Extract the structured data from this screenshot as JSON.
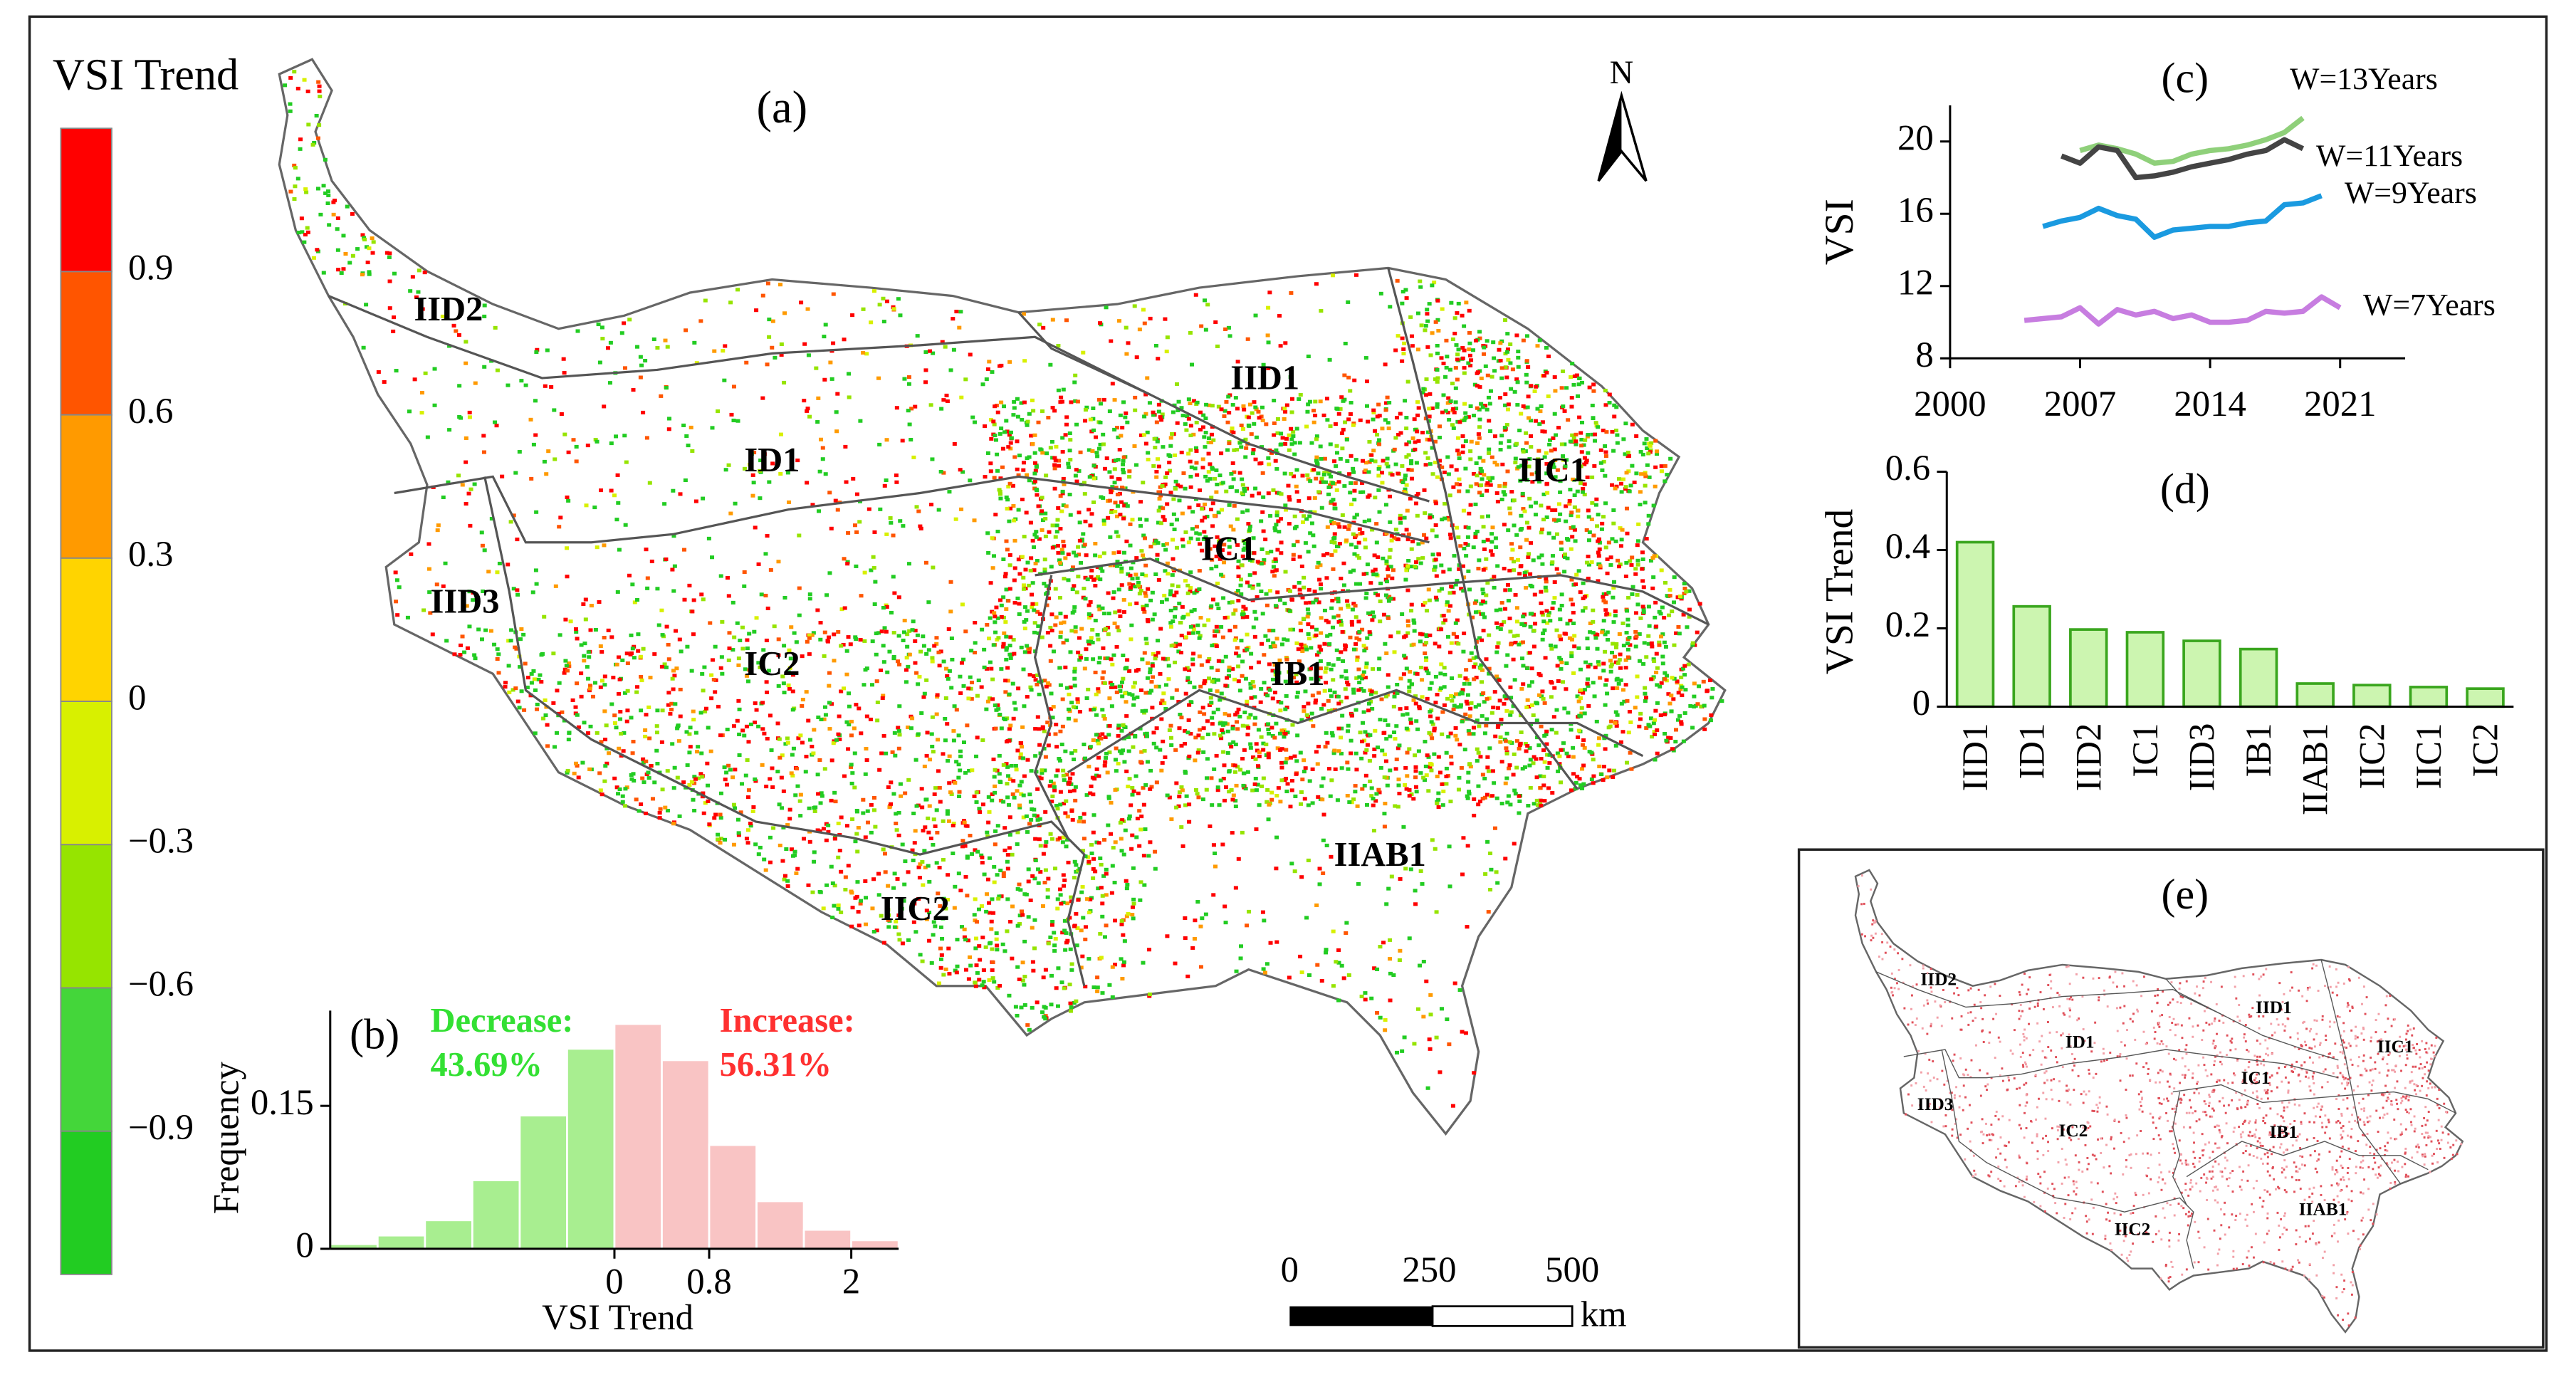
{
  "map_a": {
    "label": "(a)",
    "north": "N",
    "colorbar": {
      "title": "VSI Trend",
      "colors": [
        "#ff0000",
        "#ff5500",
        "#ff9a00",
        "#ffd400",
        "#d8f000",
        "#96e400",
        "#44d63a",
        "#22cc22"
      ],
      "ticks": [
        "0.9",
        "0.6",
        "0.3",
        "0",
        "−0.3",
        "−0.6",
        "−0.9"
      ]
    },
    "regions": [
      "IID2",
      "IID1",
      "ID1",
      "IIC1",
      "IC1",
      "IID3",
      "IC2",
      "IB1",
      "IIAB1",
      "IIC2"
    ],
    "scale": {
      "ticks": [
        "0",
        "250",
        "500"
      ],
      "unit": "km"
    }
  },
  "map_e": {
    "label": "(e)",
    "regions": [
      "IID2",
      "IID1",
      "ID1",
      "IIC1",
      "IC1",
      "IID3",
      "IC2",
      "IB1",
      "IIAB1",
      "IIC2"
    ]
  },
  "chart_data": [
    {
      "type": "histogram",
      "label": "(b)",
      "xlabel": "VSI Trend",
      "ylabel": "Frequency",
      "bins": [
        -2.4,
        -2,
        -1.6,
        -1.2,
        -0.8,
        -0.4,
        0,
        0.4,
        0.8,
        1.2,
        1.6,
        2,
        2.4
      ],
      "values": [
        0.005,
        0.014,
        0.03,
        0.072,
        0.14,
        0.21,
        0.236,
        0.198,
        0.109,
        0.05,
        0.02,
        0.009
      ],
      "colors": [
        "#a8ee90",
        "#a8ee90",
        "#a8ee90",
        "#a8ee90",
        "#a8ee90",
        "#a8ee90",
        "#f9c4c4",
        "#f9c4c4",
        "#f9c4c4",
        "#f9c4c4",
        "#f9c4c4",
        "#f9c4c4"
      ],
      "xlim": [
        -2.4,
        2.4
      ],
      "ylim": [
        0,
        0.25
      ],
      "xticks": [
        0,
        0.8,
        2
      ],
      "yticks": [
        0,
        0.15
      ],
      "annotations": [
        {
          "lines": [
            "Decrease:",
            "43.69%"
          ],
          "color": "#33e033"
        },
        {
          "lines": [
            "Increase:",
            "56.31%"
          ],
          "color": "#ff3030"
        }
      ]
    },
    {
      "type": "line",
      "label": "(c)",
      "ylabel": "VSI",
      "x": [
        2004,
        2005,
        2006,
        2007,
        2008,
        2009,
        2010,
        2011,
        2012,
        2013,
        2014,
        2015,
        2016,
        2017,
        2018,
        2019,
        2020,
        2021
      ],
      "series": [
        {
          "name": "W=13Years",
          "color": "#8fd07a",
          "values": [
            null,
            null,
            null,
            19.5,
            19.8,
            19.6,
            19.3,
            18.8,
            18.9,
            19.3,
            19.5,
            19.6,
            19.8,
            20.1,
            20.5,
            21.3,
            null,
            null
          ]
        },
        {
          "name": "W=11Years",
          "color": "#444444",
          "values": [
            null,
            null,
            19.2,
            18.8,
            19.7,
            19.5,
            18.0,
            18.1,
            18.3,
            18.6,
            18.8,
            19.0,
            19.3,
            19.5,
            20.1,
            19.6,
            null,
            null
          ]
        },
        {
          "name": "W=9Years",
          "color": "#1a9ae0",
          "values": [
            null,
            15.3,
            15.6,
            15.8,
            16.3,
            15.9,
            15.7,
            14.7,
            15.1,
            15.2,
            15.3,
            15.3,
            15.5,
            15.6,
            16.5,
            16.6,
            17.0,
            null
          ]
        },
        {
          "name": "W=7Years",
          "color": "#c77de0",
          "values": [
            10.1,
            10.2,
            10.3,
            10.8,
            9.9,
            10.7,
            10.4,
            10.6,
            10.2,
            10.4,
            10.0,
            10.0,
            10.1,
            10.6,
            10.5,
            10.6,
            11.4,
            10.8
          ]
        }
      ],
      "xlim": [
        2000,
        2024.5
      ],
      "ylim": [
        8,
        22
      ],
      "xticks": [
        2000,
        2007,
        2014,
        2021
      ],
      "yticks": [
        8,
        12,
        16,
        20
      ]
    },
    {
      "type": "bar",
      "label": "(d)",
      "ylabel": "VSI Trend",
      "categories": [
        "IID1",
        "ID1",
        "IID2",
        "IC1",
        "IID3",
        "IB1",
        "IIAB1",
        "IIC2",
        "IIC1",
        "IC2"
      ],
      "values": [
        0.42,
        0.256,
        0.197,
        0.19,
        0.168,
        0.147,
        0.059,
        0.055,
        0.05,
        0.046
      ],
      "color": "#ccf5b0",
      "edgecolor": "#3aa61e",
      "ylim": [
        0,
        0.6
      ],
      "yticks": [
        0,
        0.2,
        0.4,
        0.6
      ]
    }
  ]
}
